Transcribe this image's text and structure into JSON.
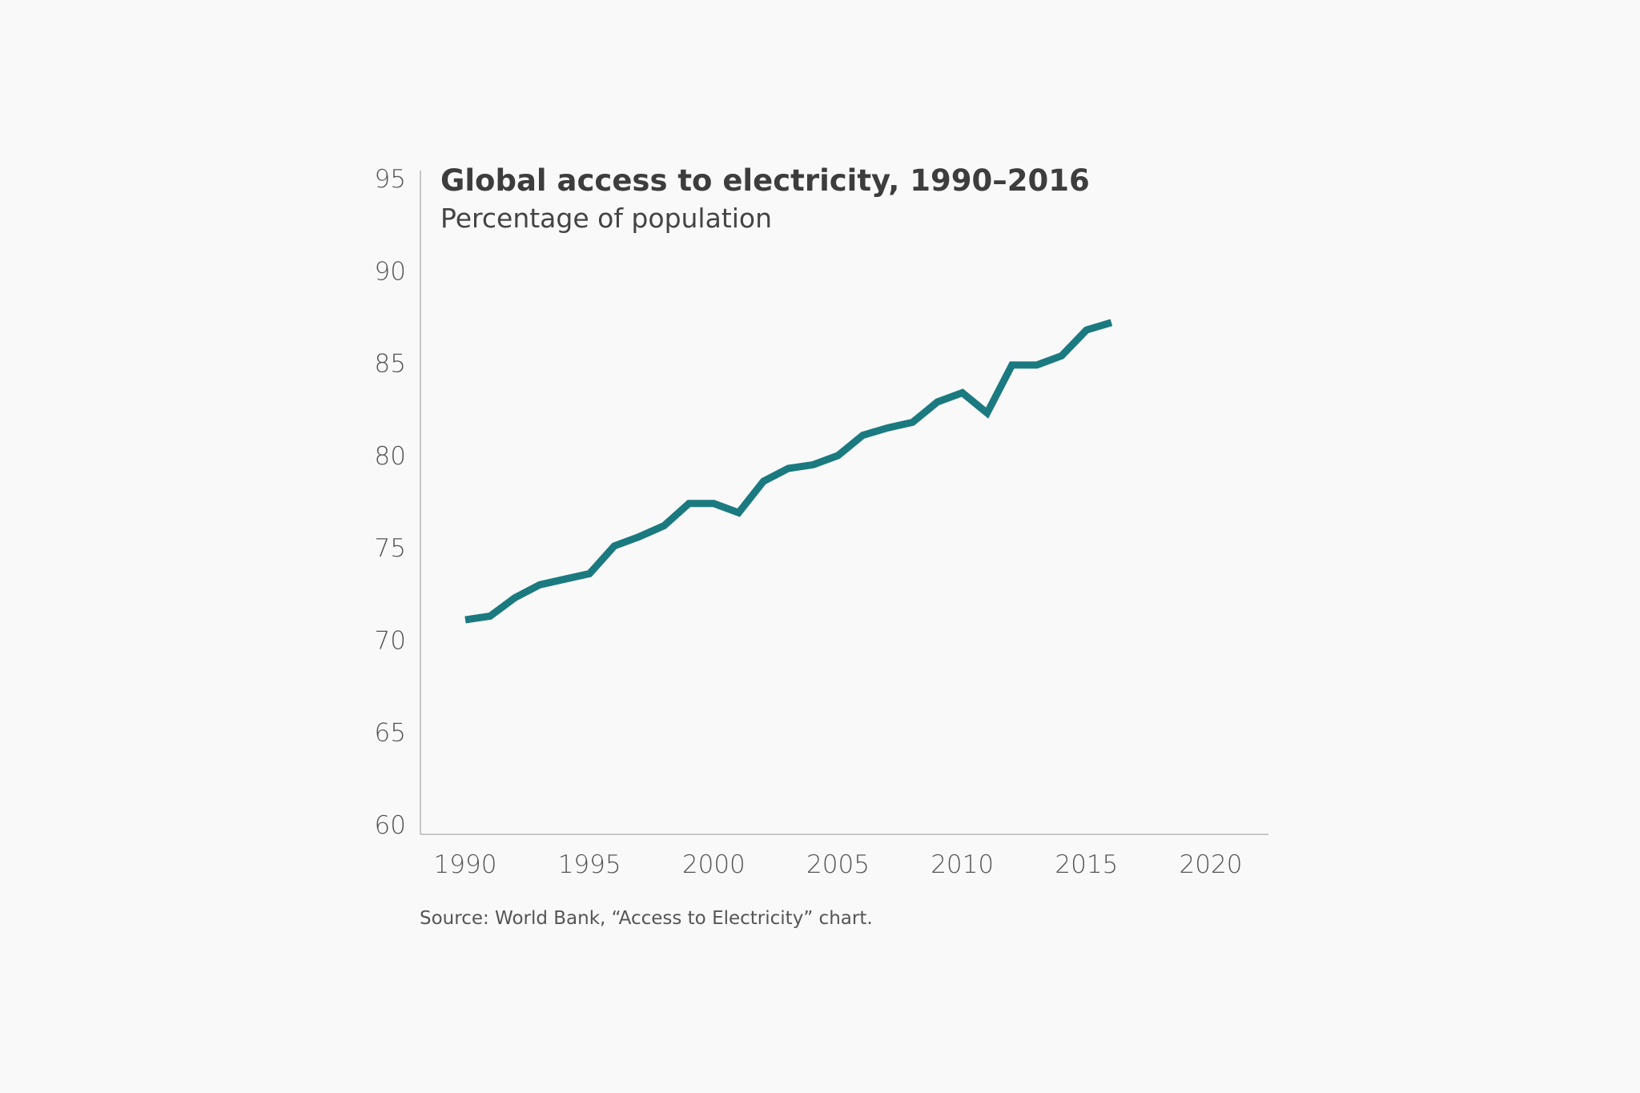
{
  "chart_data": {
    "type": "line",
    "title": "Global access to electricity, 1990–2016",
    "subtitle": "Percentage of population",
    "source": "Source: World Bank, “Access to Electricity” chart.",
    "xlabel": "",
    "ylabel": "",
    "xlim": [
      1990,
      2020
    ],
    "ylim": [
      60,
      95
    ],
    "x_ticks": [
      "1990",
      "1995",
      "2000",
      "2005",
      "2010",
      "2015",
      "2020"
    ],
    "y_ticks": [
      "60",
      "65",
      "70",
      "75",
      "80",
      "85",
      "90",
      "95"
    ],
    "grid": false,
    "line_color": "#1a7a80",
    "x": [
      1990,
      1991,
      1992,
      1993,
      1994,
      1995,
      1996,
      1997,
      1998,
      1999,
      2000,
      2001,
      2002,
      2003,
      2004,
      2005,
      2006,
      2007,
      2008,
      2009,
      2010,
      2011,
      2012,
      2013,
      2014,
      2015,
      2016
    ],
    "values": [
      71.1,
      71.3,
      72.3,
      73.0,
      73.3,
      73.6,
      75.1,
      75.6,
      76.2,
      77.4,
      77.4,
      76.9,
      78.6,
      79.3,
      79.5,
      80.0,
      81.1,
      81.5,
      81.8,
      82.9,
      83.4,
      82.3,
      84.9,
      84.9,
      85.4,
      86.8,
      87.2
    ]
  }
}
